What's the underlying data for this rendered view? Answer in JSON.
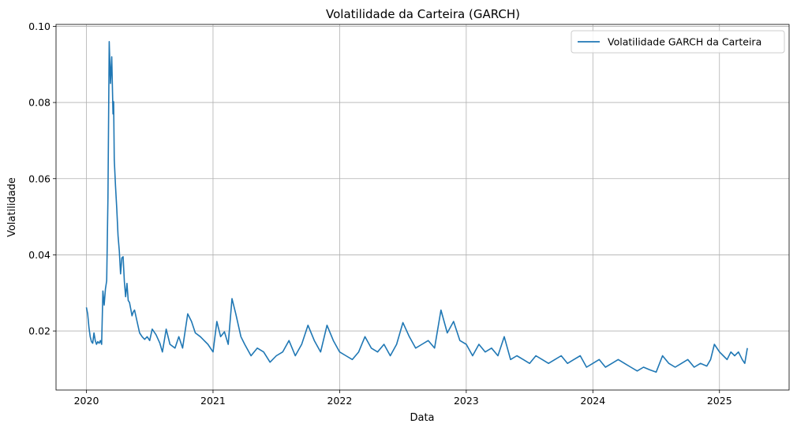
{
  "chart_data": {
    "type": "line",
    "title": "Volatilidade da Carteira (GARCH)",
    "xlabel": "Data",
    "ylabel": "Volatilidade",
    "x_ticks": [
      "2020",
      "2021",
      "2022",
      "2023",
      "2024",
      "2025"
    ],
    "y_ticks": [
      "0.02",
      "0.04",
      "0.06",
      "0.08",
      "0.10"
    ],
    "xlim": [
      2019.76,
      2025.55
    ],
    "ylim": [
      0.0045,
      0.1005
    ],
    "grid": true,
    "legend_position": "top-right",
    "series": [
      {
        "name": "Volatilidade GARCH da Carteira",
        "color": "#1f77b4",
        "x": [
          2020.0,
          2020.01,
          2020.02,
          2020.03,
          2020.04,
          2020.05,
          2020.06,
          2020.07,
          2020.08,
          2020.09,
          2020.1,
          2020.11,
          2020.12,
          2020.13,
          2020.14,
          2020.15,
          2020.16,
          2020.17,
          2020.18,
          2020.19,
          2020.2,
          2020.21,
          2020.215,
          2020.22,
          2020.23,
          2020.24,
          2020.25,
          2020.26,
          2020.27,
          2020.28,
          2020.29,
          2020.3,
          2020.31,
          2020.32,
          2020.33,
          2020.34,
          2020.35,
          2020.36,
          2020.37,
          2020.38,
          2020.4,
          2020.42,
          2020.44,
          2020.46,
          2020.48,
          2020.5,
          2020.52,
          2020.55,
          2020.58,
          2020.6,
          2020.63,
          2020.66,
          2020.7,
          2020.73,
          2020.76,
          2020.8,
          2020.83,
          2020.86,
          2020.9,
          2020.93,
          2020.96,
          2021.0,
          2021.03,
          2021.06,
          2021.09,
          2021.12,
          2021.15,
          2021.18,
          2021.22,
          2021.25,
          2021.3,
          2021.35,
          2021.4,
          2021.45,
          2021.5,
          2021.55,
          2021.6,
          2021.65,
          2021.7,
          2021.75,
          2021.8,
          2021.85,
          2021.9,
          2021.95,
          2022.0,
          2022.05,
          2022.1,
          2022.15,
          2022.2,
          2022.25,
          2022.3,
          2022.35,
          2022.4,
          2022.45,
          2022.5,
          2022.55,
          2022.6,
          2022.65,
          2022.7,
          2022.75,
          2022.8,
          2022.85,
          2022.9,
          2022.95,
          2023.0,
          2023.05,
          2023.1,
          2023.15,
          2023.2,
          2023.25,
          2023.3,
          2023.35,
          2023.4,
          2023.45,
          2023.5,
          2023.55,
          2023.6,
          2023.65,
          2023.7,
          2023.75,
          2023.8,
          2023.85,
          2023.9,
          2023.95,
          2024.0,
          2024.05,
          2024.1,
          2024.15,
          2024.2,
          2024.25,
          2024.3,
          2024.35,
          2024.4,
          2024.45,
          2024.5,
          2024.55,
          2024.6,
          2024.65,
          2024.7,
          2024.75,
          2024.8,
          2024.85,
          2024.9,
          2024.93,
          2024.96,
          2025.0,
          2025.03,
          2025.06,
          2025.09,
          2025.12,
          2025.15,
          2025.18,
          2025.2,
          2025.22
        ],
        "y": [
          0.0262,
          0.0245,
          0.021,
          0.0185,
          0.0172,
          0.0168,
          0.0195,
          0.0175,
          0.0165,
          0.0172,
          0.0168,
          0.0175,
          0.0165,
          0.0305,
          0.0268,
          0.031,
          0.0332,
          0.055,
          0.096,
          0.085,
          0.092,
          0.077,
          0.0802,
          0.065,
          0.058,
          0.052,
          0.045,
          0.041,
          0.035,
          0.0392,
          0.0395,
          0.033,
          0.029,
          0.0325,
          0.028,
          0.0275,
          0.0258,
          0.024,
          0.025,
          0.0255,
          0.0225,
          0.0195,
          0.0185,
          0.0178,
          0.0185,
          0.0175,
          0.0205,
          0.019,
          0.0168,
          0.0145,
          0.0205,
          0.0165,
          0.0155,
          0.0185,
          0.0155,
          0.0245,
          0.0225,
          0.0195,
          0.0185,
          0.0175,
          0.0165,
          0.0145,
          0.0225,
          0.0185,
          0.0198,
          0.0165,
          0.0285,
          0.0245,
          0.0185,
          0.0165,
          0.0135,
          0.0155,
          0.0145,
          0.0118,
          0.0135,
          0.0145,
          0.0175,
          0.0135,
          0.0165,
          0.0215,
          0.0175,
          0.0145,
          0.0215,
          0.0175,
          0.0145,
          0.0135,
          0.0125,
          0.0145,
          0.0185,
          0.0155,
          0.0145,
          0.0165,
          0.0135,
          0.0165,
          0.0222,
          0.0185,
          0.0155,
          0.0165,
          0.0175,
          0.0155,
          0.0255,
          0.0195,
          0.0225,
          0.0175,
          0.0165,
          0.0135,
          0.0165,
          0.0145,
          0.0155,
          0.0135,
          0.0185,
          0.0125,
          0.0135,
          0.0125,
          0.0115,
          0.0135,
          0.0125,
          0.0115,
          0.0125,
          0.0135,
          0.0115,
          0.0125,
          0.0135,
          0.0105,
          0.0115,
          0.0125,
          0.0105,
          0.0115,
          0.0125,
          0.0115,
          0.0105,
          0.0095,
          0.0105,
          0.0098,
          0.0092,
          0.0135,
          0.0115,
          0.0105,
          0.0115,
          0.0125,
          0.0105,
          0.0115,
          0.0108,
          0.0125,
          0.0165,
          0.0145,
          0.0135,
          0.0125,
          0.0145,
          0.0135,
          0.0145,
          0.0125,
          0.0115,
          0.0155
        ]
      }
    ]
  }
}
